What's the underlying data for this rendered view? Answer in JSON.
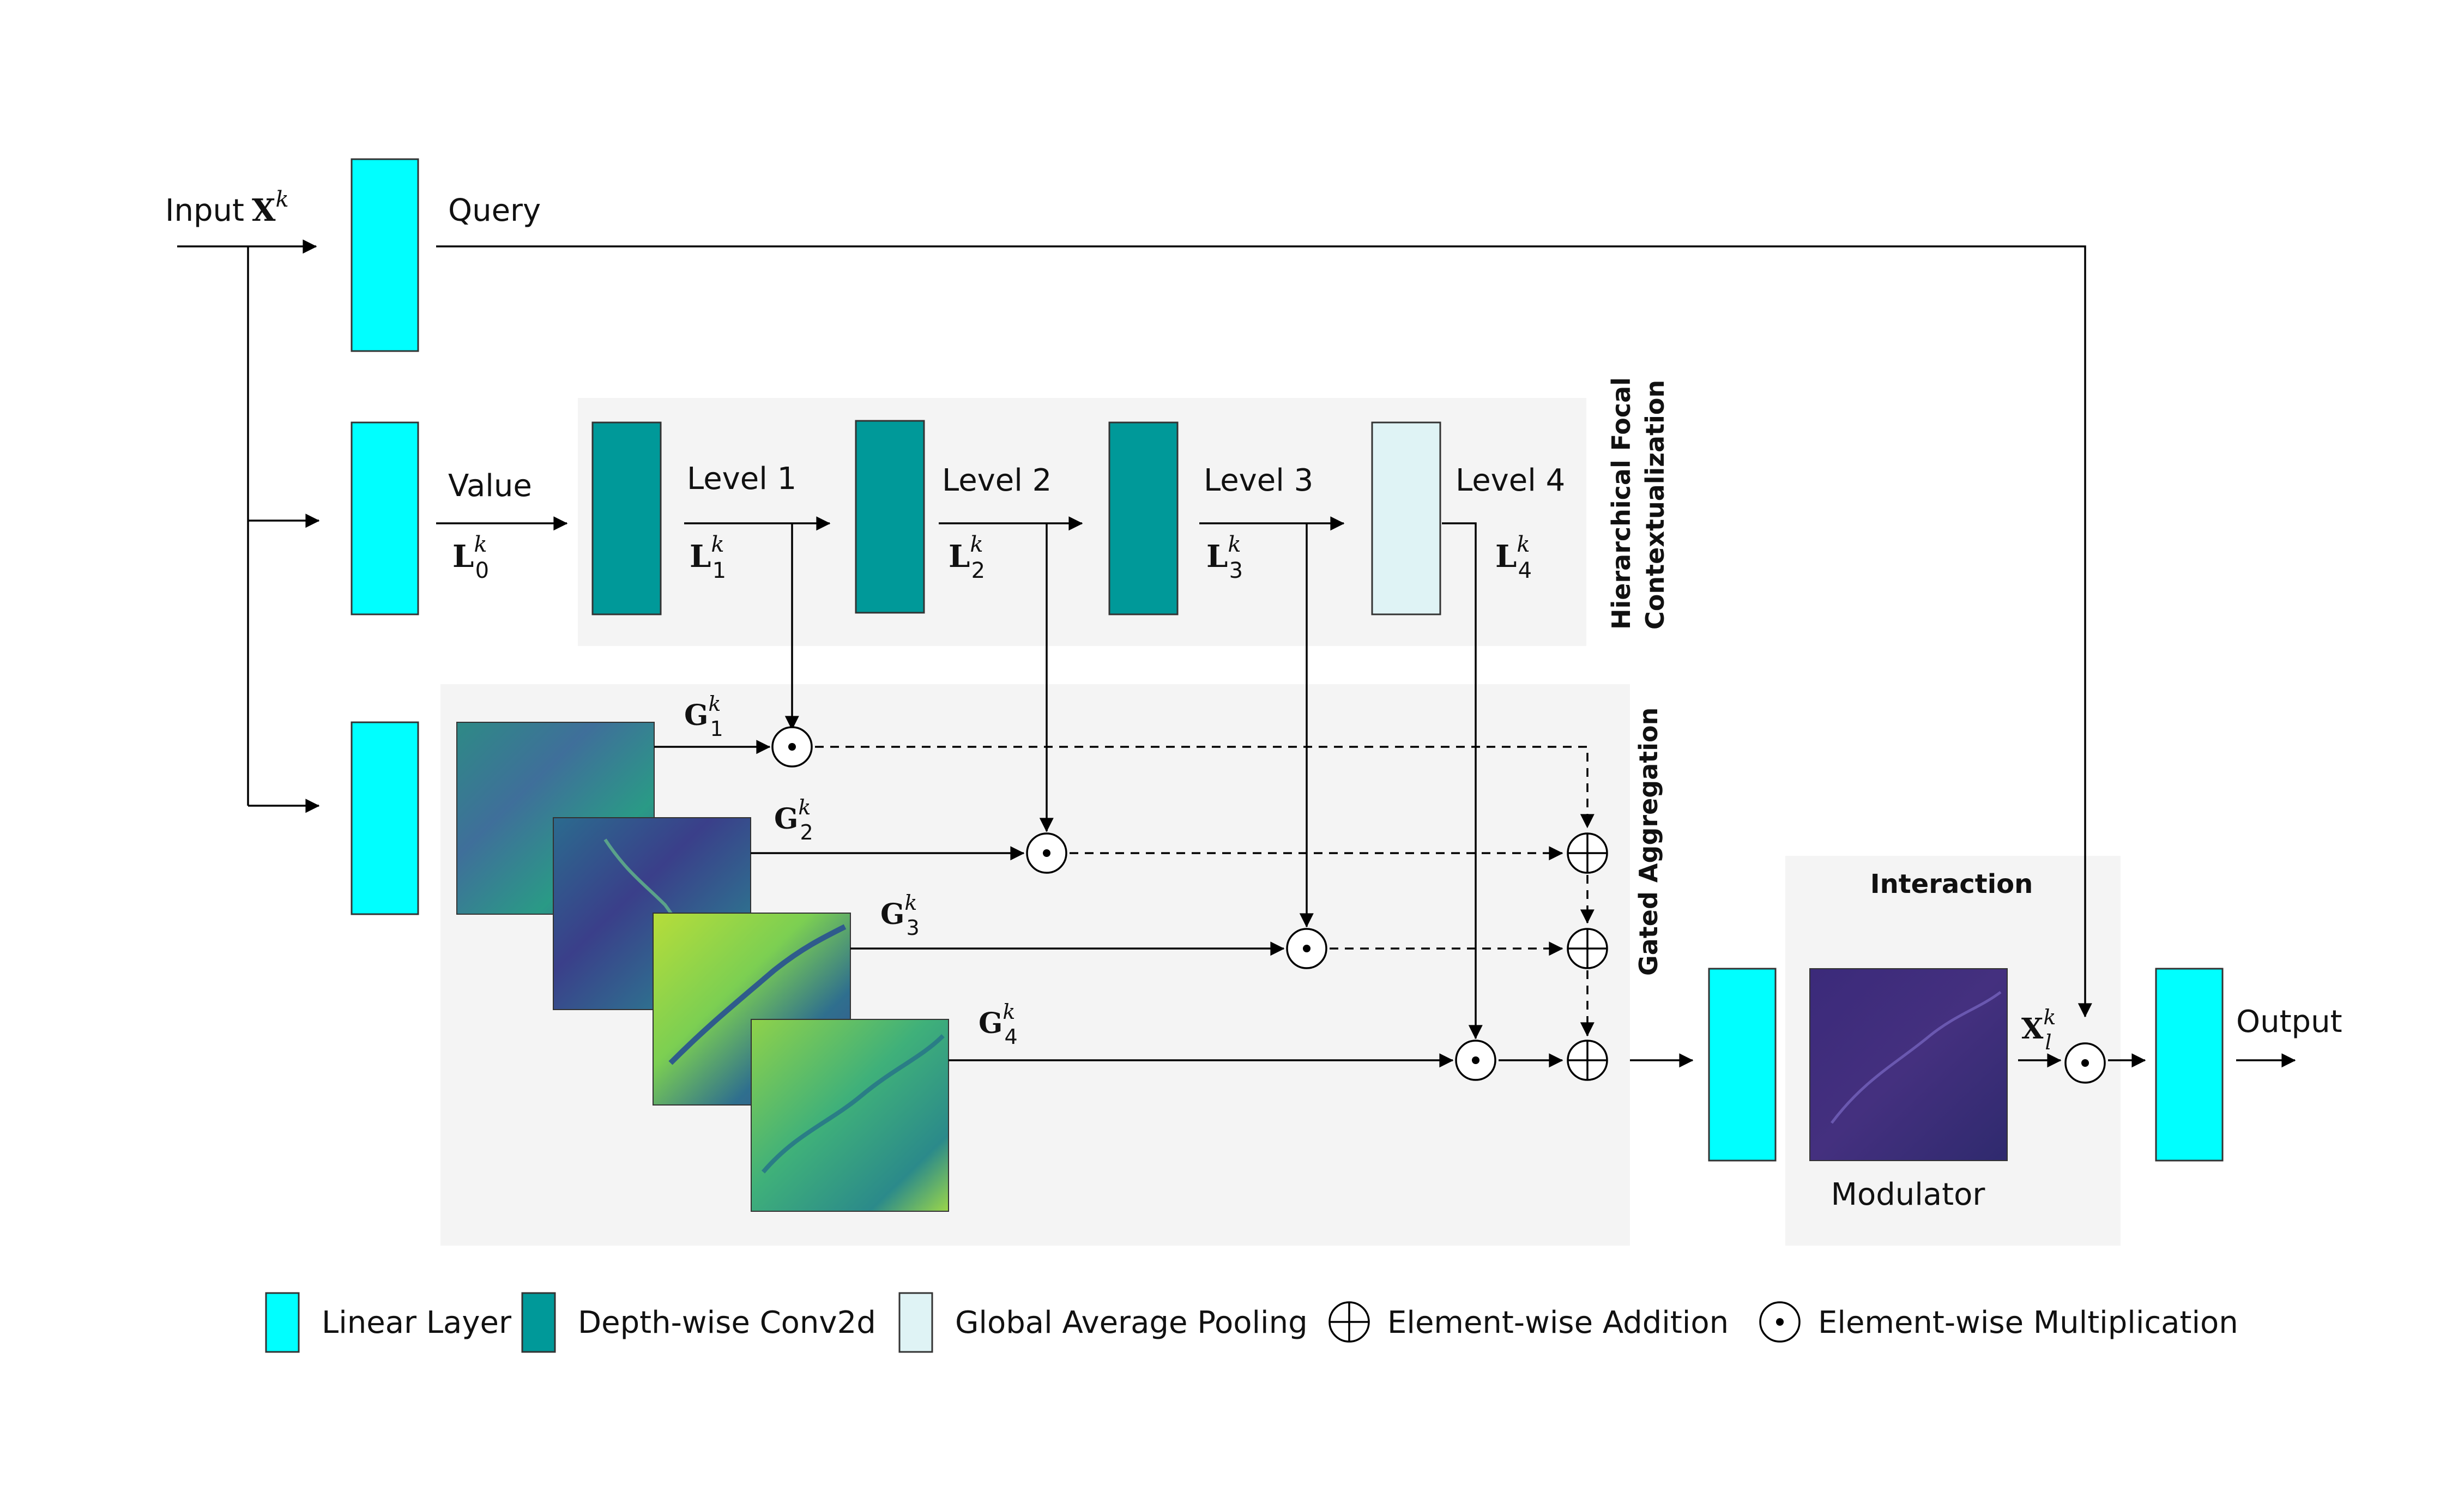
{
  "colors": {
    "linear": "#00ffff",
    "conv": "#009999",
    "gap": "#dff3f5",
    "panel": "#f4f4f4"
  },
  "labels": {
    "input": "Input",
    "input_sym": "X",
    "input_sup": "k",
    "query": "Query",
    "value": "Value",
    "level1": "Level 1",
    "level2": "Level 2",
    "level3": "Level 3",
    "level4": "Level 4",
    "hfc_line1": "Hierarchical Focal",
    "hfc_line2": "Contextualization",
    "gated": "Gated Aggregation",
    "interaction": "Interaction",
    "modulator": "Modulator",
    "output": "Output"
  },
  "symbols": {
    "L0": {
      "base": "L",
      "sub": "0",
      "sup": "k"
    },
    "L1": {
      "base": "L",
      "sub": "1",
      "sup": "k"
    },
    "L2": {
      "base": "L",
      "sub": "2",
      "sup": "k"
    },
    "L3": {
      "base": "L",
      "sub": "3",
      "sup": "k"
    },
    "L4": {
      "base": "L",
      "sub": "4",
      "sup": "k"
    },
    "G1": {
      "base": "G",
      "sub": "1",
      "sup": "k"
    },
    "G2": {
      "base": "G",
      "sub": "2",
      "sup": "k"
    },
    "G3": {
      "base": "G",
      "sub": "3",
      "sup": "k"
    },
    "G4": {
      "base": "G",
      "sub": "4",
      "sup": "k"
    },
    "Xl": {
      "base": "X",
      "sub": "l",
      "sup": "k"
    }
  },
  "legend": {
    "linear": "Linear Layer",
    "conv": "Depth-wise Conv2d",
    "gap": "Global Average Pooling",
    "add": "Element-wise Addition",
    "mul": "Element-wise Multiplication"
  }
}
